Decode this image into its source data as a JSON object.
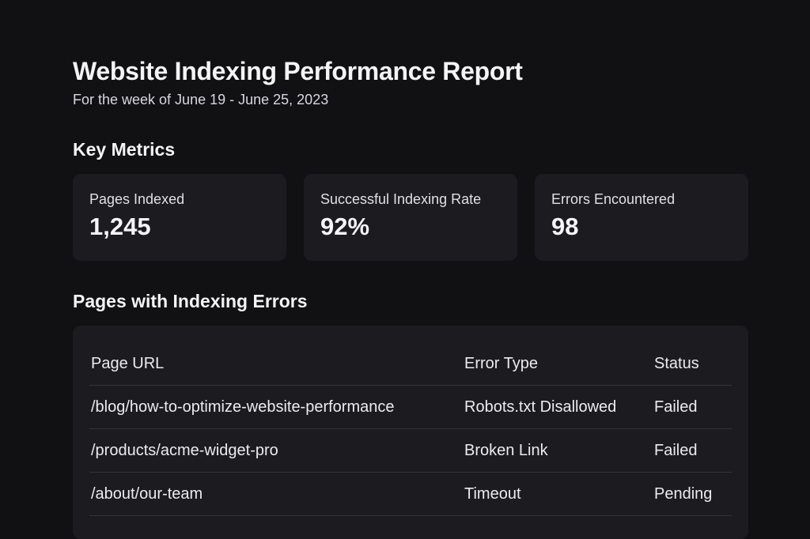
{
  "header": {
    "title": "Website Indexing Performance Report",
    "subtitle": "For the week of June 19 - June 25, 2023"
  },
  "key_metrics": {
    "heading": "Key Metrics",
    "cards": [
      {
        "label": "Pages Indexed",
        "value": "1,245"
      },
      {
        "label": "Successful Indexing Rate",
        "value": "92%"
      },
      {
        "label": "Errors Encountered",
        "value": "98"
      }
    ]
  },
  "errors_table": {
    "heading": "Pages with Indexing Errors",
    "columns": [
      "Page URL",
      "Error Type",
      "Status"
    ],
    "rows": [
      {
        "url": "/blog/how-to-optimize-website-performance",
        "error_type": "Robots.txt Disallowed",
        "status": "Failed"
      },
      {
        "url": "/products/acme-widget-pro",
        "error_type": "Broken Link",
        "status": "Failed"
      },
      {
        "url": "/about/our-team",
        "error_type": "Timeout",
        "status": "Pending"
      }
    ]
  },
  "colors": {
    "background": "#111013",
    "card": "#1c1b20",
    "status_failed": "#f0534e",
    "status_pending": "#f3b716"
  }
}
